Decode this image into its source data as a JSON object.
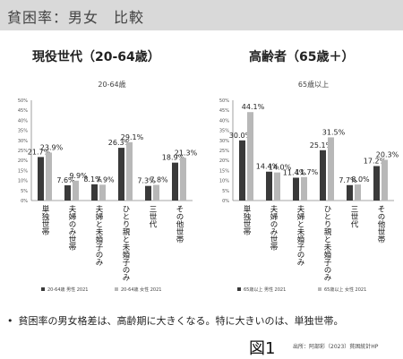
{
  "header": {
    "title": "貧困率：男女　比較"
  },
  "charts": [
    {
      "subtitle": "現役世代（20-64歳）"
    },
    {
      "subtitle": "高齢者（65歳＋）"
    }
  ],
  "chart_data": [
    {
      "type": "bar",
      "title": "20-64歳",
      "categories": [
        "単独世帯",
        "夫婦のみ世帯",
        "夫婦と未婚子のみ",
        "ひとり親と未婚子のみ",
        "三世代",
        "その他世帯"
      ],
      "series": [
        {
          "name": "20-64歳 男性 2021",
          "color": "#3a3a3a",
          "values": [
            21.7,
            7.6,
            8.1,
            26.3,
            7.3,
            18.9
          ]
        },
        {
          "name": "20-64歳 女性 2021",
          "color": "#b8b8b8",
          "values": [
            23.9,
            9.9,
            7.9,
            29.1,
            7.8,
            21.3
          ]
        }
      ],
      "data_labels": [
        [
          "21.7%",
          "7.6%",
          "8.1%",
          "26.3%",
          "7.3%",
          "18.9%"
        ],
        [
          "23.9%",
          "9.9%",
          "7.9%",
          "29.1%",
          "7.8%",
          "21.3%"
        ]
      ],
      "yticks": [
        "0%",
        "5%",
        "10%",
        "15%",
        "20%",
        "25%",
        "30%",
        "35%",
        "40%",
        "45%",
        "50%"
      ],
      "ylim": [
        0,
        50
      ],
      "legend_position": "bottom",
      "grid": false
    },
    {
      "type": "bar",
      "title": "65歳以上",
      "categories": [
        "単独世帯",
        "夫婦のみ世帯",
        "夫婦と未婚子のみ",
        "ひとり親と未婚子のみ",
        "三世代",
        "その他世帯"
      ],
      "series": [
        {
          "name": "65歳以上 男性 2021",
          "color": "#3a3a3a",
          "values": [
            30.0,
            14.4,
            11.4,
            25.1,
            7.7,
            17.2
          ]
        },
        {
          "name": "65歳以上 女性 2021",
          "color": "#b8b8b8",
          "values": [
            44.1,
            14.0,
            11.7,
            31.5,
            8.0,
            20.3
          ]
        }
      ],
      "data_labels": [
        [
          "30.0%",
          "14.4%",
          "11.4%",
          "25.1%",
          "7.7%",
          "17.2%"
        ],
        [
          "44.1%",
          "14.0%",
          "11.7%",
          "31.5%",
          "8.0%",
          "20.3%"
        ]
      ],
      "yticks": [
        "0%",
        "5%",
        "10%",
        "15%",
        "20%",
        "25%",
        "30%",
        "35%",
        "40%",
        "45%",
        "50%"
      ],
      "ylim": [
        0,
        50
      ],
      "legend_position": "bottom",
      "grid": false
    }
  ],
  "footer": {
    "bullet": "貧困率の男女格差は、高齢期に大きくなる。特に大きいのは、単独世帯。",
    "figure_label": "図1",
    "source": "出所：阿部彩（2023）貧困統計HP"
  }
}
